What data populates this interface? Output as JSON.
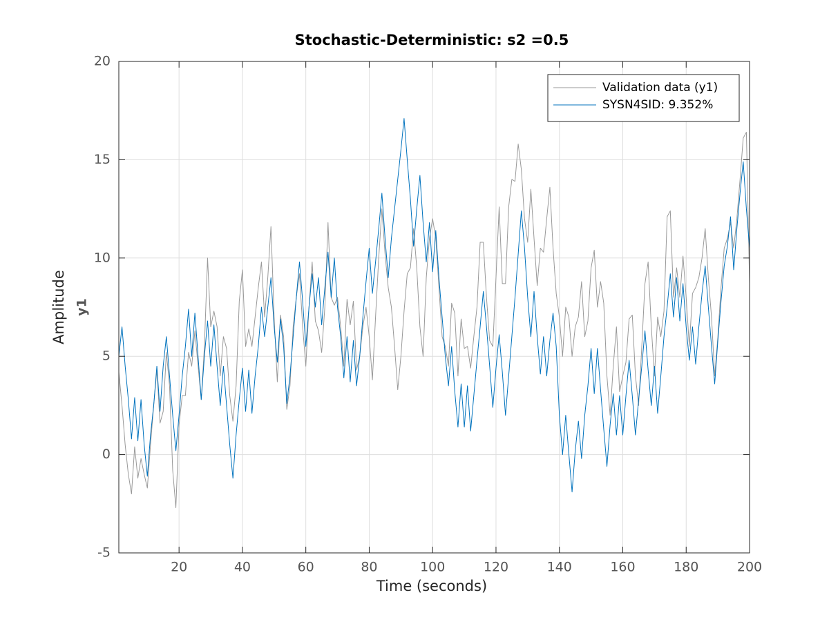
{
  "chart_data": {
    "type": "line",
    "title": "Stochastic-Deterministic: s2 =0.5",
    "xlabel": "Time (seconds)",
    "ylabel": [
      "Amplitude",
      "y1"
    ],
    "x": [
      1,
      2,
      3,
      4,
      5,
      6,
      7,
      8,
      9,
      10,
      11,
      12,
      13,
      14,
      15,
      16,
      17,
      18,
      19,
      20,
      21,
      22,
      23,
      24,
      25,
      26,
      27,
      28,
      29,
      30,
      31,
      32,
      33,
      34,
      35,
      36,
      37,
      38,
      39,
      40,
      41,
      42,
      43,
      44,
      45,
      46,
      47,
      48,
      49,
      50,
      51,
      52,
      53,
      54,
      55,
      56,
      57,
      58,
      59,
      60,
      61,
      62,
      63,
      64,
      65,
      66,
      67,
      68,
      69,
      70,
      71,
      72,
      73,
      74,
      75,
      76,
      77,
      78,
      79,
      80,
      81,
      82,
      83,
      84,
      85,
      86,
      87,
      88,
      89,
      90,
      91,
      92,
      93,
      94,
      95,
      96,
      97,
      98,
      99,
      100,
      101,
      102,
      103,
      104,
      105,
      106,
      107,
      108,
      109,
      110,
      111,
      112,
      113,
      114,
      115,
      116,
      117,
      118,
      119,
      120,
      121,
      122,
      123,
      124,
      125,
      126,
      127,
      128,
      129,
      130,
      131,
      132,
      133,
      134,
      135,
      136,
      137,
      138,
      139,
      140,
      141,
      142,
      143,
      144,
      145,
      146,
      147,
      148,
      149,
      150,
      151,
      152,
      153,
      154,
      155,
      156,
      157,
      158,
      159,
      160,
      161,
      162,
      163,
      164,
      165,
      166,
      167,
      168,
      169,
      170,
      171,
      172,
      173,
      174,
      175,
      176,
      177,
      178,
      179,
      180,
      181,
      182,
      183,
      184,
      185,
      186,
      187,
      188,
      189,
      190,
      191,
      192,
      193,
      194,
      195,
      196,
      197,
      198,
      199,
      200
    ],
    "series": [
      {
        "name": "Validation data (y1)",
        "color": "#999999",
        "values": [
          4.2,
          2.5,
          0.5,
          -1.0,
          -2.0,
          0.4,
          -1.2,
          -0.2,
          -1.0,
          -1.7,
          0.5,
          2.5,
          4.3,
          1.6,
          2.2,
          5.2,
          3.5,
          -0.8,
          -2.7,
          1.5,
          3.0,
          3.0,
          5.2,
          4.5,
          6.3,
          4.5,
          2.8,
          5.5,
          10.0,
          6.5,
          7.3,
          6.5,
          4.0,
          6.0,
          5.4,
          3.0,
          1.7,
          3.5,
          7.8,
          9.4,
          5.5,
          6.4,
          5.5,
          7.0,
          8.5,
          9.8,
          7.0,
          9.0,
          11.6,
          7.0,
          3.7,
          7.1,
          6.0,
          2.3,
          3.5,
          6.5,
          8.0,
          9.2,
          6.5,
          4.5,
          7.5,
          9.8,
          6.8,
          6.3,
          5.2,
          7.5,
          11.8,
          8.0,
          7.6,
          8.0,
          6.5,
          4.5,
          7.9,
          6.6,
          7.8,
          4.3,
          5.0,
          6.5,
          7.5,
          6.0,
          3.8,
          7.0,
          10.0,
          12.5,
          10.2,
          8.5,
          7.5,
          5.5,
          3.3,
          5.0,
          7.3,
          9.2,
          9.5,
          11.5,
          9.5,
          6.5,
          5.0,
          9.0,
          11.0,
          12.0,
          11.0,
          8.5,
          6.0,
          5.5,
          4.5,
          7.7,
          7.2,
          4.0,
          6.9,
          5.4,
          5.5,
          4.4,
          6.0,
          7.5,
          10.8,
          10.8,
          8.0,
          5.8,
          5.5,
          9.0,
          12.6,
          8.7,
          8.7,
          12.6,
          14.0,
          13.9,
          15.8,
          14.5,
          12.0,
          10.8,
          13.5,
          11.0,
          8.6,
          10.5,
          10.3,
          12.0,
          13.6,
          10.5,
          8.2,
          7.0,
          5.0,
          7.5,
          7.0,
          5.0,
          6.5,
          7.0,
          8.8,
          6.0,
          6.8,
          9.5,
          10.4,
          7.5,
          8.8,
          7.7,
          4.0,
          2.0,
          4.5,
          6.5,
          3.2,
          4.0,
          4.7,
          6.9,
          7.1,
          4.0,
          2.5,
          5.5,
          8.7,
          9.8,
          6.5,
          4.0,
          7.0,
          6.0,
          7.3,
          12.1,
          12.4,
          8.0,
          9.5,
          8.0,
          10.1,
          8.0,
          5.5,
          8.2,
          8.5,
          9.0,
          10.0,
          11.5,
          9.0,
          7.0,
          4.0,
          6.0,
          8.5,
          10.5,
          11.0,
          11.8,
          10.5,
          12.0,
          14.0,
          16.1,
          16.4,
          8.7
        ]
      },
      {
        "name": "SYSN4SID: 9.352%",
        "color": "#0072bd",
        "values": [
          5.0,
          6.5,
          4.5,
          2.8,
          0.8,
          2.9,
          0.7,
          2.8,
          0.5,
          -1.1,
          1.0,
          2.5,
          4.5,
          2.2,
          4.5,
          6.0,
          4.0,
          2.0,
          0.2,
          2.0,
          4.0,
          5.5,
          7.4,
          5.0,
          7.2,
          5.0,
          2.8,
          5.0,
          6.8,
          4.5,
          6.6,
          4.5,
          2.5,
          4.5,
          2.5,
          0.5,
          -1.2,
          1.0,
          2.8,
          4.4,
          2.2,
          4.3,
          2.1,
          4.0,
          5.5,
          7.5,
          6.0,
          7.5,
          9.0,
          6.5,
          4.7,
          6.9,
          5.5,
          2.6,
          4.0,
          6.0,
          8.0,
          9.8,
          7.8,
          5.5,
          7.5,
          9.2,
          7.5,
          9.0,
          6.6,
          8.5,
          10.3,
          8.0,
          10.0,
          7.5,
          6.0,
          3.9,
          6.0,
          3.7,
          5.8,
          3.5,
          5.0,
          7.0,
          8.8,
          10.5,
          8.2,
          9.8,
          11.5,
          13.3,
          11.0,
          9.0,
          11.0,
          12.5,
          14.0,
          15.5,
          17.1,
          15.0,
          13.0,
          10.6,
          12.5,
          14.2,
          11.8,
          9.8,
          11.8,
          9.3,
          11.4,
          9.0,
          7.0,
          5.0,
          3.5,
          5.5,
          3.2,
          1.4,
          3.6,
          1.4,
          3.5,
          1.2,
          3.0,
          4.8,
          6.5,
          8.3,
          6.5,
          4.5,
          2.4,
          4.4,
          6.1,
          4.2,
          2.0,
          4.0,
          6.0,
          8.0,
          10.2,
          12.4,
          10.5,
          8.0,
          6.0,
          8.3,
          6.0,
          4.1,
          6.0,
          4.0,
          5.8,
          7.2,
          5.5,
          2.0,
          0.0,
          2.0,
          0.0,
          -1.9,
          0.2,
          1.7,
          -0.2,
          2.0,
          3.5,
          5.4,
          3.1,
          5.4,
          3.3,
          1.3,
          -0.6,
          1.5,
          3.1,
          1.0,
          3.0,
          1.0,
          3.0,
          4.8,
          3.0,
          1.0,
          2.8,
          4.5,
          6.3,
          4.3,
          2.5,
          4.5,
          2.1,
          4.0,
          6.0,
          7.5,
          9.2,
          7.0,
          9.0,
          6.8,
          8.7,
          6.5,
          4.8,
          6.5,
          4.6,
          6.5,
          8.2,
          9.6,
          7.5,
          5.5,
          3.6,
          5.8,
          7.8,
          9.6,
          10.6,
          12.1,
          9.4,
          11.5,
          13.3,
          14.9,
          12.5,
          10.5
        ]
      }
    ],
    "xlim": [
      1,
      200
    ],
    "xticks": [
      20,
      40,
      60,
      80,
      100,
      120,
      140,
      160,
      180,
      200
    ],
    "ylim": [
      -5,
      20
    ],
    "yticks": [
      -5,
      0,
      5,
      10,
      15,
      20
    ],
    "grid": true,
    "legend": "northeast"
  }
}
